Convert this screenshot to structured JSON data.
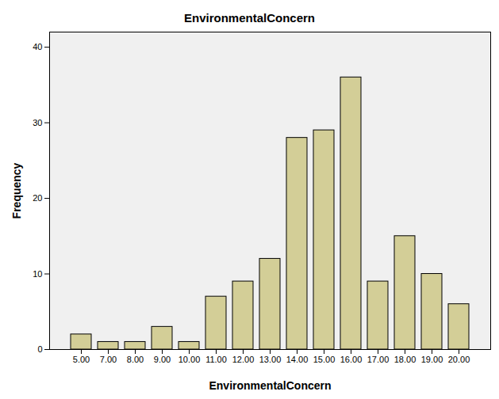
{
  "chart_data": {
    "type": "bar",
    "title": "EnvironmentalConcern",
    "x_label": "EnvironmentalConcern",
    "y_label": "Frequency",
    "categories": [
      "5.00",
      "7.00",
      "8.00",
      "9.00",
      "10.00",
      "11.00",
      "12.00",
      "13.00",
      "14.00",
      "15.00",
      "16.00",
      "17.00",
      "18.00",
      "19.00",
      "20.00"
    ],
    "values": [
      2,
      1,
      1,
      3,
      1,
      7,
      9,
      12,
      28,
      29,
      36,
      9,
      15,
      10,
      6
    ],
    "color": "#d3ce97",
    "ylim": [
      0,
      42
    ],
    "yticks": [
      0,
      10,
      20,
      30,
      40
    ],
    "grid": false
  }
}
